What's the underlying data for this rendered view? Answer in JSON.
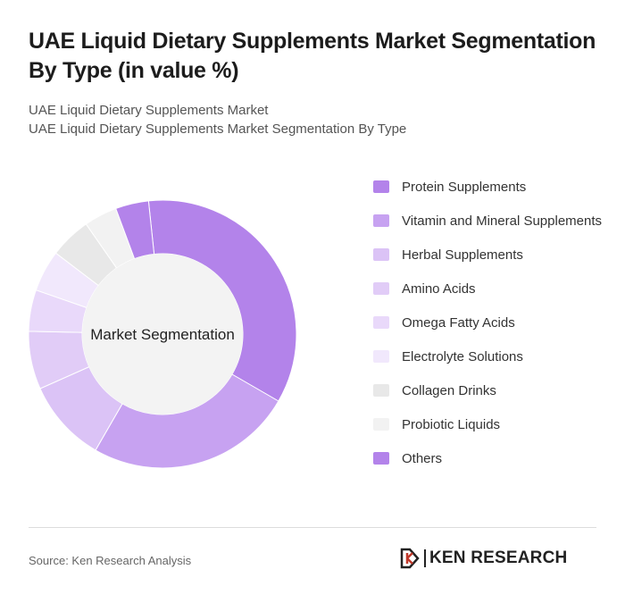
{
  "header": {
    "title": "UAE Liquid Dietary Supplements Market Segmentation By Type (in value %)",
    "subtitle_line1": "UAE Liquid Dietary Supplements Market",
    "subtitle_line2": "UAE Liquid Dietary Supplements Market Segmentation By Type"
  },
  "chart_data": {
    "type": "pie",
    "center_label": "Market Segmentation",
    "legend_placement": "right",
    "categories": [
      "Protein Supplements",
      "Vitamin and Mineral Supplements",
      "Herbal Supplements",
      "Amino Acids",
      "Omega Fatty Acids",
      "Electrolyte Solutions",
      "Collagen Drinks",
      "Probiotic Liquids",
      "Others"
    ],
    "values": [
      35,
      25,
      10,
      7,
      5,
      5,
      5,
      4,
      4
    ],
    "colors": [
      "#b383ea",
      "#c7a2f1",
      "#dbc3f6",
      "#e1ccf7",
      "#e9d9fa",
      "#f1e8fc",
      "#e8e8e8",
      "#f2f2f2",
      "#b383ea"
    ]
  },
  "footer": {
    "source": "Source: Ken Research Analysis",
    "logo_text": "KEN RESEARCH"
  }
}
